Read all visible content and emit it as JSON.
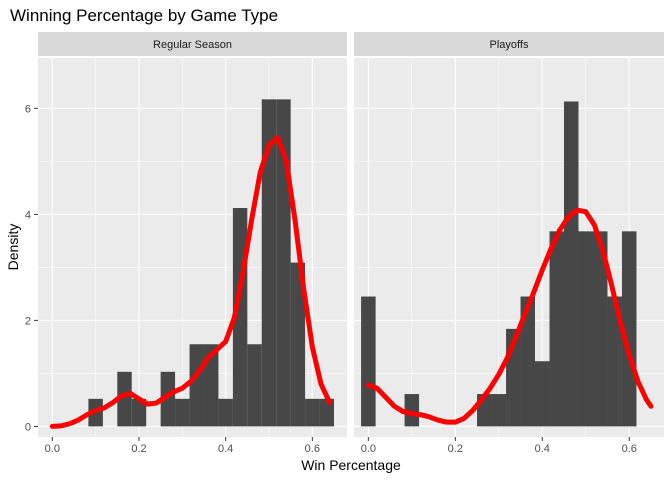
{
  "chart_data": {
    "type": "bar",
    "title": "Winning Percentage by Game Type",
    "xlabel": "Win Percentage",
    "ylabel": "Density",
    "xlim": [
      -0.033,
      0.68
    ],
    "ylim": [
      -0.2,
      6.95
    ],
    "x_ticks": [
      0.0,
      0.2,
      0.4,
      0.6
    ],
    "x_tick_labels": [
      "0.0",
      "0.2",
      "0.4",
      "0.6"
    ],
    "y_ticks": [
      0,
      2,
      4,
      6
    ],
    "y_tick_labels": [
      "0",
      "2",
      "4",
      "6"
    ],
    "grid": true,
    "bin_width": 0.0333,
    "colors": {
      "panel_background": "#ebebeb",
      "strip_background": "#d9d9d9",
      "grid_line": "#ffffff",
      "bar_fill": "#474747",
      "density_line": "#ff0000"
    },
    "panels": [
      {
        "strip_label": "Regular Season",
        "histogram": [
          {
            "x_start": 0.0833,
            "x_end": 0.1167,
            "density": 0.52
          },
          {
            "x_start": 0.15,
            "x_end": 0.1833,
            "density": 1.03
          },
          {
            "x_start": 0.1833,
            "x_end": 0.2167,
            "density": 0.52
          },
          {
            "x_start": 0.25,
            "x_end": 0.2833,
            "density": 1.03
          },
          {
            "x_start": 0.2833,
            "x_end": 0.3167,
            "density": 0.52
          },
          {
            "x_start": 0.3167,
            "x_end": 0.35,
            "density": 1.55
          },
          {
            "x_start": 0.35,
            "x_end": 0.3833,
            "density": 1.55
          },
          {
            "x_start": 0.3833,
            "x_end": 0.4167,
            "density": 0.52
          },
          {
            "x_start": 0.4167,
            "x_end": 0.45,
            "density": 4.12
          },
          {
            "x_start": 0.45,
            "x_end": 0.4833,
            "density": 1.55
          },
          {
            "x_start": 0.4833,
            "x_end": 0.5167,
            "density": 6.17
          },
          {
            "x_start": 0.5167,
            "x_end": 0.55,
            "density": 6.17
          },
          {
            "x_start": 0.55,
            "x_end": 0.5833,
            "density": 3.09
          },
          {
            "x_start": 0.5833,
            "x_end": 0.6167,
            "density": 0.52
          },
          {
            "x_start": 0.6167,
            "x_end": 0.65,
            "density": 0.52
          }
        ],
        "density_curve": {
          "x": [
            0.0,
            0.02,
            0.04,
            0.06,
            0.08,
            0.1,
            0.12,
            0.14,
            0.16,
            0.18,
            0.2,
            0.22,
            0.24,
            0.26,
            0.28,
            0.3,
            0.32,
            0.34,
            0.36,
            0.38,
            0.4,
            0.42,
            0.44,
            0.46,
            0.48,
            0.5,
            0.52,
            0.54,
            0.56,
            0.58,
            0.6,
            0.62,
            0.64
          ],
          "y": [
            0.0,
            0.01,
            0.05,
            0.12,
            0.22,
            0.3,
            0.35,
            0.45,
            0.58,
            0.62,
            0.52,
            0.42,
            0.44,
            0.55,
            0.65,
            0.72,
            0.85,
            1.05,
            1.3,
            1.45,
            1.6,
            2.05,
            2.9,
            3.9,
            4.8,
            5.3,
            5.45,
            5.0,
            3.9,
            2.6,
            1.5,
            0.8,
            0.45
          ]
        }
      },
      {
        "strip_label": "Playoffs",
        "histogram": [
          {
            "x_start": -0.0167,
            "x_end": 0.0167,
            "density": 2.45
          },
          {
            "x_start": 0.0833,
            "x_end": 0.1167,
            "density": 0.61
          },
          {
            "x_start": 0.25,
            "x_end": 0.2833,
            "density": 0.61
          },
          {
            "x_start": 0.2833,
            "x_end": 0.3167,
            "density": 0.61
          },
          {
            "x_start": 0.3167,
            "x_end": 0.35,
            "density": 1.84
          },
          {
            "x_start": 0.35,
            "x_end": 0.3833,
            "density": 2.45
          },
          {
            "x_start": 0.3833,
            "x_end": 0.4167,
            "density": 1.23
          },
          {
            "x_start": 0.4167,
            "x_end": 0.45,
            "density": 3.68
          },
          {
            "x_start": 0.45,
            "x_end": 0.4833,
            "density": 6.13
          },
          {
            "x_start": 0.4833,
            "x_end": 0.5167,
            "density": 3.68
          },
          {
            "x_start": 0.5167,
            "x_end": 0.55,
            "density": 3.68
          },
          {
            "x_start": 0.55,
            "x_end": 0.5833,
            "density": 2.45
          },
          {
            "x_start": 0.5833,
            "x_end": 0.6167,
            "density": 3.68
          }
        ],
        "density_curve": {
          "x": [
            0.0,
            0.02,
            0.04,
            0.06,
            0.08,
            0.1,
            0.12,
            0.14,
            0.16,
            0.18,
            0.2,
            0.22,
            0.24,
            0.26,
            0.28,
            0.3,
            0.32,
            0.34,
            0.36,
            0.38,
            0.4,
            0.42,
            0.44,
            0.46,
            0.48,
            0.5,
            0.52,
            0.54,
            0.56,
            0.58,
            0.6,
            0.62,
            0.64,
            0.65
          ],
          "y": [
            0.78,
            0.72,
            0.55,
            0.38,
            0.28,
            0.24,
            0.22,
            0.18,
            0.12,
            0.08,
            0.08,
            0.15,
            0.3,
            0.5,
            0.72,
            0.98,
            1.3,
            1.7,
            2.12,
            2.52,
            2.95,
            3.35,
            3.7,
            3.95,
            4.08,
            4.05,
            3.8,
            3.3,
            2.65,
            1.95,
            1.35,
            0.85,
            0.5,
            0.38
          ]
        }
      }
    ]
  }
}
